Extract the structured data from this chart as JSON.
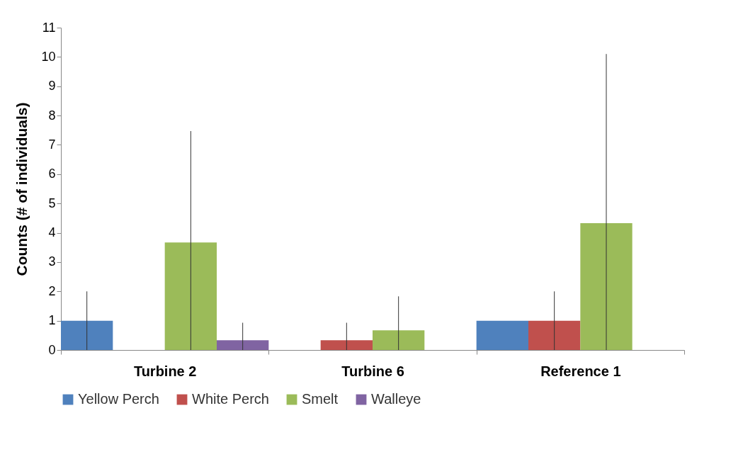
{
  "chart_data": {
    "type": "bar",
    "ylabel": "Counts (# of individuals)",
    "categories": [
      "Turbine 2",
      "Turbine 6",
      "Reference 1"
    ],
    "series": [
      {
        "name": "Yellow Perch",
        "color": "#4f81bd",
        "values": [
          1,
          0,
          1
        ],
        "errors": [
          [
            0,
            2
          ],
          null,
          [
            1,
            1
          ]
        ]
      },
      {
        "name": "White Perch",
        "color": "#c0504d",
        "values": [
          0,
          0.33,
          1
        ],
        "errors": [
          null,
          [
            0,
            0.93
          ],
          [
            0,
            2
          ]
        ]
      },
      {
        "name": "Smelt",
        "color": "#9bbb59",
        "values": [
          3.67,
          0.67,
          4.33
        ],
        "errors": [
          [
            0,
            7.47
          ],
          [
            0,
            1.83
          ],
          [
            0,
            10.1
          ]
        ]
      },
      {
        "name": "Walleye",
        "color": "#8064a2",
        "values": [
          0.33,
          0,
          0
        ],
        "errors": [
          [
            0,
            0.93
          ],
          null,
          null
        ]
      }
    ],
    "ylim": [
      0,
      11
    ],
    "yticks": [
      0,
      1,
      2,
      3,
      4,
      5,
      6,
      7,
      8,
      9,
      10,
      11
    ],
    "grid": false,
    "legend": "bottom"
  }
}
